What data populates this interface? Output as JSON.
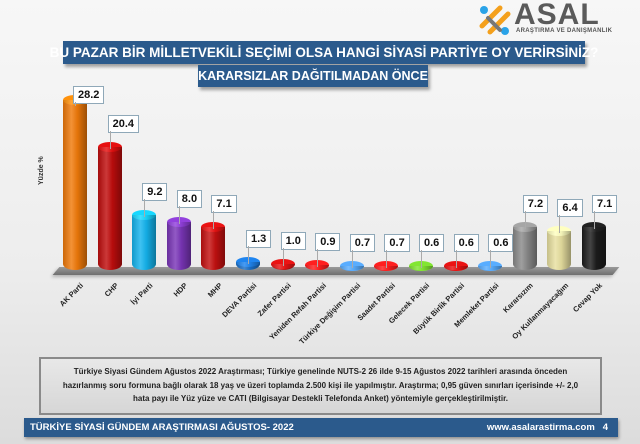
{
  "logo": {
    "name": "ASAL",
    "subtitle": "ARAŞTIRMA VE DANIŞMANLIK"
  },
  "header": {
    "title": "BU PAZAR BİR MİLLETVEKİLİ SEÇİMİ OLSA HANGİ SİYASİ PARTİYE OY VERİRSİNİZ?",
    "subtitle": "KARARSIZLAR DAĞITILMADAN ÖNCE"
  },
  "chart_data": {
    "type": "bar",
    "title": "BU PAZAR BİR MİLLETVEKİLİ SEÇİMİ OLSA HANGİ SİYASİ PARTİYE OY VERİRSİNİZ?",
    "subtitle": "KARARSIZLAR DAĞITILMADAN ÖNCE",
    "xlabel": "",
    "ylabel": "Yüzde %",
    "ylim": [
      0,
      30
    ],
    "grid": false,
    "legend": null,
    "categories": [
      "AK Parti",
      "CHP",
      "İyi Parti",
      "HDP",
      "MHP",
      "DEVA Partisi",
      "Zafer Partisi",
      "Yeniden Refah Partisi",
      "Türkiye Değişim Partisi",
      "Saadet Partisi",
      "Gelecek Partisi",
      "Büyük Birlik Partisi",
      "Memleket Partisi",
      "Kararsızım",
      "Oy Kullanmayacağım",
      "Cevap Yok"
    ],
    "values": [
      28.2,
      20.4,
      9.2,
      8.0,
      7.1,
      1.3,
      1.0,
      0.9,
      0.7,
      0.7,
      0.6,
      0.6,
      0.6,
      7.2,
      6.4,
      7.1
    ],
    "value_labels": [
      "28.2",
      "20.4",
      "9.2",
      "8.0",
      "7.1",
      "1.3",
      "1.0",
      "0.9",
      "0.7",
      "0.7",
      "0.6",
      "0.6",
      "0.6",
      "7.2",
      "6.4",
      "7.1"
    ],
    "colors": [
      "#f07a0a",
      "#c00d0d",
      "#14b4ee",
      "#7a35b8",
      "#c41010",
      "#1a6fc8",
      "#c41010",
      "#ee1a1a",
      "#4a90d8",
      "#ee1a1a",
      "#6cc02a",
      "#c41010",
      "#4a90d8",
      "#8a8a8a",
      "#e8e0a0",
      "#1c1c1c"
    ]
  },
  "note": {
    "line1": "Türkiye Siyasi Gündem Ağustos 2022 Araştırması; Türkiye genelinde NUTS-2 26 ilde 9-15 Ağustos 2022 tarihleri arasında önceden",
    "line2": "hazırlanmış soru formuna bağlı olarak 18 yaş ve üzeri toplamda 2.500 kişi ile yapılmıştır. Araştırma; 0,95 güven sınırları içerisinde +/- 2,0",
    "line3": "hata payı ile Yüz yüze ve CATI (Bilgisayar Destekli Telefonda Anket) yöntemiyle gerçekleştirilmiştir."
  },
  "footer": {
    "left": "TÜRKİYE SİYASİ GÜNDEM ARAŞTIRMASI  AĞUSTOS- 2022",
    "url": "www.asalarastirma.com",
    "page": "4"
  }
}
